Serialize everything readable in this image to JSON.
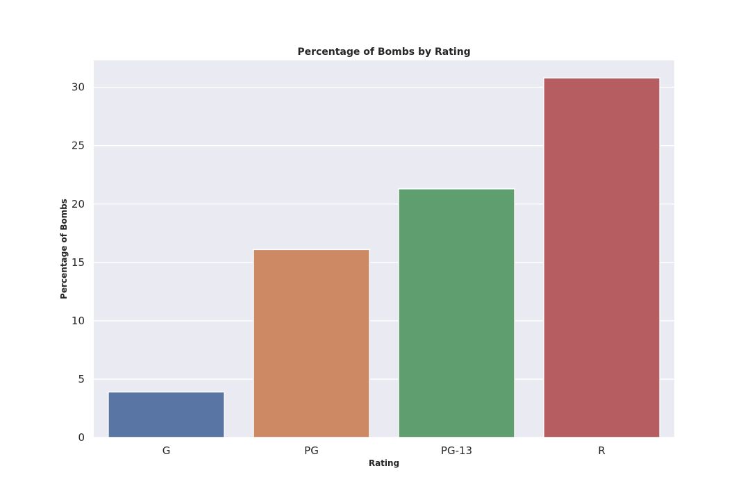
{
  "chart_data": {
    "type": "bar",
    "title": "Percentage of Bombs by Rating",
    "xlabel": "Rating",
    "ylabel": "Percentage of Bombs",
    "categories": [
      "G",
      "PG",
      "PG-13",
      "R"
    ],
    "values": [
      3.9,
      16.1,
      21.3,
      30.8
    ],
    "colors": [
      "#5875a4",
      "#cc8963",
      "#5f9e6e",
      "#b55d60"
    ],
    "ylim": [
      0,
      32.3
    ],
    "yticks": [
      0,
      5,
      10,
      15,
      20,
      25,
      30
    ],
    "grid": true,
    "legend": "none",
    "plot_background": "#eaeaf2",
    "grid_color": "#ffffff"
  }
}
